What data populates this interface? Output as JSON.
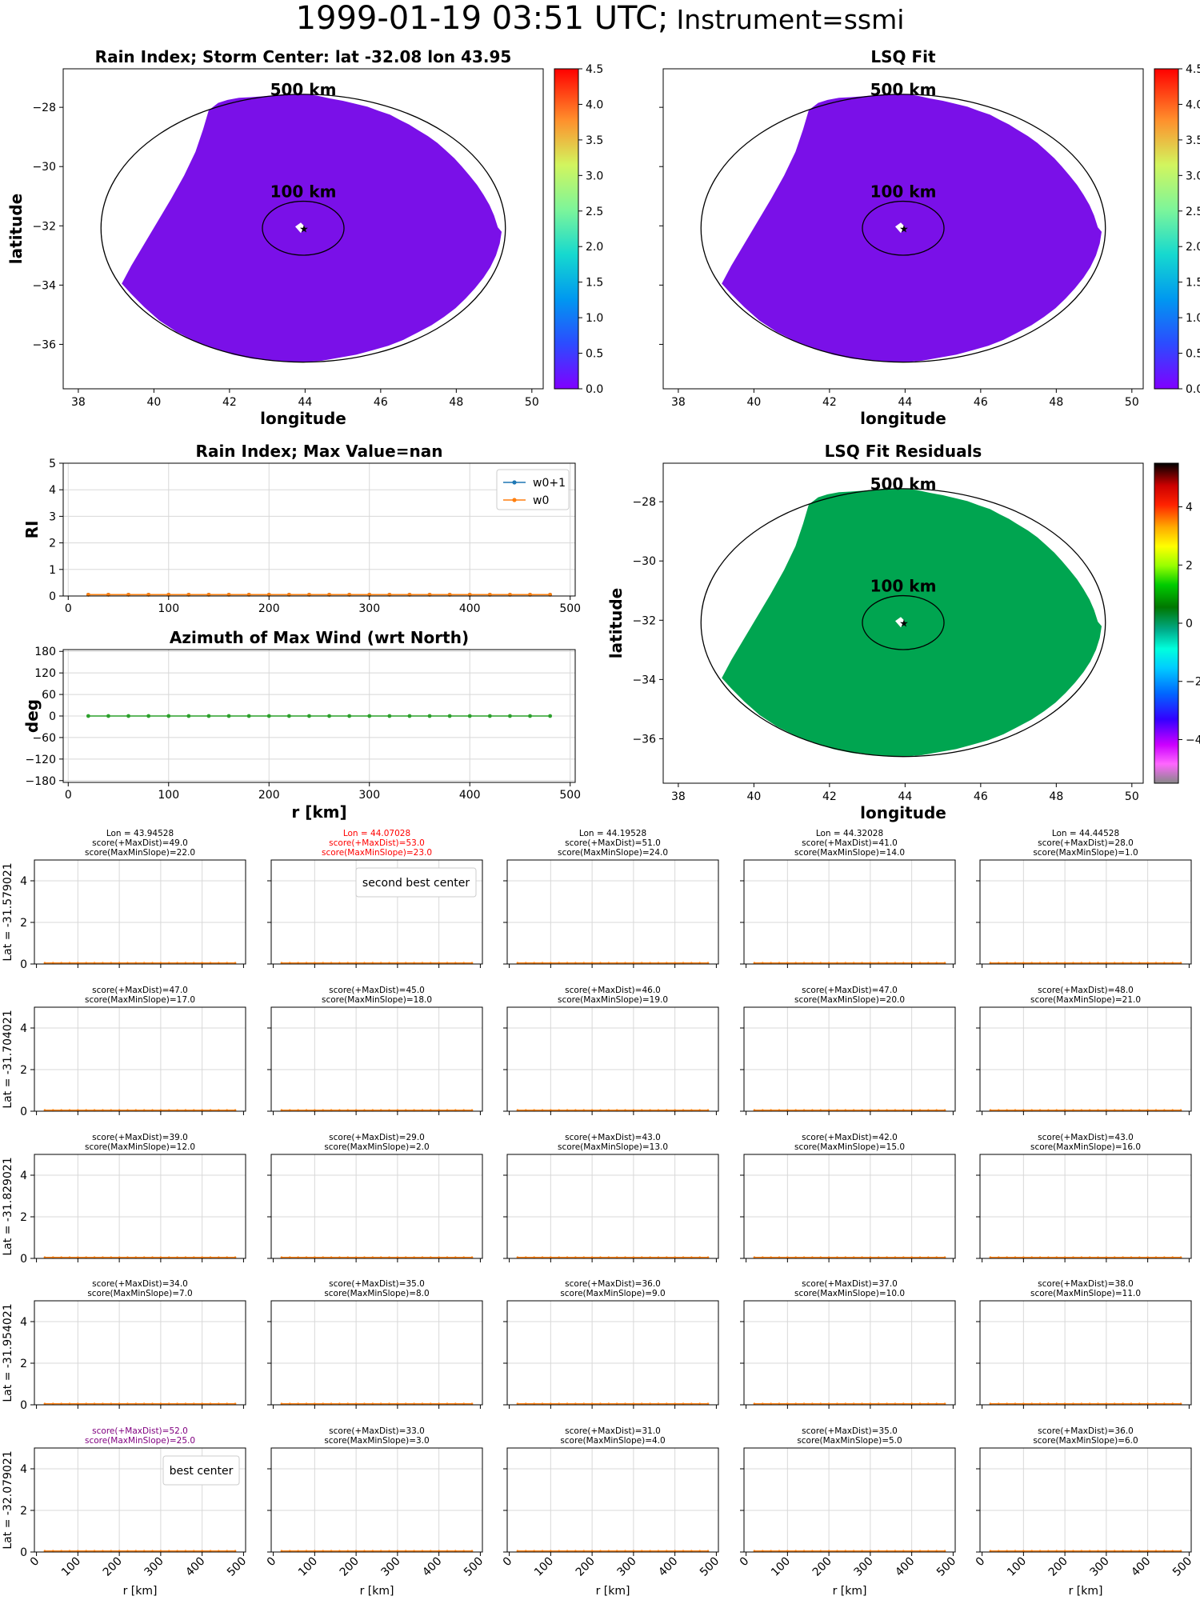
{
  "figure": {
    "title": "1999-01-19 03:51 UTC;",
    "subtitle": "Instrument=ssmi"
  },
  "colors": {
    "storm_fill": "#7a10e8",
    "residual_fill": "#00a550",
    "blue_line": "#1f77b4",
    "orange_line": "#ff7f0e",
    "green_line": "#2ca02c",
    "highlight_red": "#ff0000",
    "highlight_purple": "#800080",
    "grid": "#d8d8d8"
  },
  "chart_data": [
    {
      "id": "rain-index-map",
      "type": "heatmap",
      "title": "Rain Index; Storm Center: lat -32.08 lon 43.95",
      "xlabel": "longitude",
      "ylabel": "latitude",
      "xlim": [
        37.6,
        50.3
      ],
      "ylim": [
        -37.5,
        -26.7
      ],
      "xticks": [
        38,
        40,
        42,
        44,
        46,
        48,
        50
      ],
      "yticks": [
        -28,
        -30,
        -32,
        -34,
        -36
      ],
      "center": [
        43.95,
        -32.08
      ],
      "ring_labels": [
        "500 km",
        "100 km"
      ],
      "colorbar": {
        "range": [
          0.0,
          4.5
        ],
        "ticks": [
          "0.0",
          "0.5",
          "1.0",
          "1.5",
          "2.0",
          "2.5",
          "3.0",
          "3.5",
          "4.0",
          "4.5"
        ],
        "cmap": "rainbow"
      },
      "field_value": 0.0
    },
    {
      "id": "lsq-fit-map",
      "type": "heatmap",
      "title": "LSQ Fit",
      "xlabel": "longitude",
      "ylabel": "",
      "xlim": [
        37.6,
        50.3
      ],
      "ylim": [
        -37.5,
        -26.7
      ],
      "xticks": [
        38,
        40,
        42,
        44,
        46,
        48,
        50
      ],
      "yticks": [
        -28,
        -30,
        -32,
        -34,
        -36
      ],
      "center": [
        43.95,
        -32.08
      ],
      "ring_labels": [
        "500 km",
        "100 km"
      ],
      "colorbar": {
        "range": [
          0.0,
          4.5
        ],
        "ticks": [
          "0.0",
          "0.5",
          "1.0",
          "1.5",
          "2.0",
          "2.5",
          "3.0",
          "3.5",
          "4.0",
          "4.5"
        ],
        "cmap": "rainbow"
      },
      "field_value": 0.0
    },
    {
      "id": "lsq-residuals-map",
      "type": "heatmap",
      "title": "LSQ Fit Residuals",
      "xlabel": "longitude",
      "ylabel": "latitude",
      "xlim": [
        37.6,
        50.3
      ],
      "ylim": [
        -37.5,
        -26.7
      ],
      "xticks": [
        38,
        40,
        42,
        44,
        46,
        48,
        50
      ],
      "yticks": [
        -28,
        -30,
        -32,
        -34,
        -36
      ],
      "center": [
        43.95,
        -32.08
      ],
      "ring_labels": [
        "500 km",
        "100 km"
      ],
      "colorbar": {
        "range": [
          -5.5,
          5.5
        ],
        "ticks": [
          "4",
          "2",
          "0",
          "−2",
          "−4"
        ],
        "tick_values": [
          4,
          2,
          0,
          -2,
          -4
        ],
        "cmap": "nipy_spectral"
      },
      "field_value": 0.0
    },
    {
      "id": "rain-index-profile",
      "type": "line",
      "title": "Rain Index; Max Value=nan",
      "xlabel": "",
      "ylabel": "RI",
      "xlim": [
        -5,
        505
      ],
      "ylim": [
        0,
        5
      ],
      "xticks": [
        0,
        100,
        200,
        300,
        400,
        500
      ],
      "yticks": [
        0,
        1,
        2,
        3,
        4,
        5
      ],
      "x": [
        20,
        40,
        60,
        80,
        100,
        120,
        140,
        160,
        180,
        200,
        220,
        240,
        260,
        280,
        300,
        320,
        340,
        360,
        380,
        400,
        420,
        440,
        460,
        480
      ],
      "series": [
        {
          "name": "w0+1",
          "marker": "star",
          "values": [
            0.05,
            0.05,
            0.05,
            0.05,
            0.05,
            0.05,
            0.05,
            0.05,
            0.05,
            0.05,
            0.05,
            0.05,
            0.05,
            0.05,
            0.05,
            0.05,
            0.05,
            0.05,
            0.05,
            0.05,
            0.05,
            0.05,
            0.05,
            0.05
          ]
        },
        {
          "name": "w0",
          "marker": "dot",
          "values": [
            0.05,
            0.05,
            0.05,
            0.05,
            0.05,
            0.05,
            0.05,
            0.05,
            0.05,
            0.05,
            0.05,
            0.05,
            0.05,
            0.05,
            0.05,
            0.05,
            0.05,
            0.05,
            0.05,
            0.05,
            0.05,
            0.05,
            0.05,
            0.05
          ]
        }
      ],
      "legend": "top-right"
    },
    {
      "id": "azimuth-profile",
      "type": "line",
      "title": "Azimuth of Max Wind (wrt North)",
      "xlabel": "r [km]",
      "ylabel": "deg",
      "xlim": [
        -5,
        505
      ],
      "ylim": [
        -185,
        185
      ],
      "xticks": [
        0,
        100,
        200,
        300,
        400,
        500
      ],
      "yticks": [
        180,
        120,
        60,
        0,
        -60,
        -120,
        -180
      ],
      "ytick_labels": [
        "180",
        "120",
        "60",
        "0",
        "−60",
        "−120",
        "−180"
      ],
      "x": [
        20,
        40,
        60,
        80,
        100,
        120,
        140,
        160,
        180,
        200,
        220,
        240,
        260,
        280,
        300,
        320,
        340,
        360,
        380,
        400,
        420,
        440,
        460,
        480
      ],
      "series": [
        {
          "values": [
            0,
            0,
            0,
            0,
            0,
            0,
            0,
            0,
            0,
            0,
            0,
            0,
            0,
            0,
            0,
            0,
            0,
            0,
            0,
            0,
            0,
            0,
            0,
            0
          ]
        }
      ]
    },
    {
      "id": "center-search-grid",
      "type": "line",
      "xlabel": "r [km]",
      "xlim": [
        -5,
        505
      ],
      "ylim": [
        0,
        5
      ],
      "xticks": [
        0,
        100,
        200,
        300,
        400,
        500
      ],
      "yticks": [
        0,
        2,
        4
      ],
      "lons": [
        "Lon = 43.94528",
        "Lon = 44.07028",
        "Lon = 44.19528",
        "Lon = 44.32028",
        "Lon = 44.44528"
      ],
      "lats": [
        "Lat = -31.579021",
        "Lat = -31.704021",
        "Lat = -31.829021",
        "Lat = -31.954021",
        "Lat = -32.079021"
      ],
      "cells": [
        [
          {
            "maxdist": "score(+MaxDist)=49.0",
            "slope": "score(MaxMinSlope)=22.0"
          },
          {
            "maxdist": "score(+MaxDist)=53.0",
            "slope": "score(MaxMinSlope)=23.0",
            "highlight": "red",
            "legend": "second best center"
          },
          {
            "maxdist": "score(+MaxDist)=51.0",
            "slope": "score(MaxMinSlope)=24.0"
          },
          {
            "maxdist": "score(+MaxDist)=41.0",
            "slope": "score(MaxMinSlope)=14.0"
          },
          {
            "maxdist": "score(+MaxDist)=28.0",
            "slope": "score(MaxMinSlope)=1.0"
          }
        ],
        [
          {
            "maxdist": "score(+MaxDist)=47.0",
            "slope": "score(MaxMinSlope)=17.0"
          },
          {
            "maxdist": "score(+MaxDist)=45.0",
            "slope": "score(MaxMinSlope)=18.0"
          },
          {
            "maxdist": "score(+MaxDist)=46.0",
            "slope": "score(MaxMinSlope)=19.0"
          },
          {
            "maxdist": "score(+MaxDist)=47.0",
            "slope": "score(MaxMinSlope)=20.0"
          },
          {
            "maxdist": "score(+MaxDist)=48.0",
            "slope": "score(MaxMinSlope)=21.0"
          }
        ],
        [
          {
            "maxdist": "score(+MaxDist)=39.0",
            "slope": "score(MaxMinSlope)=12.0"
          },
          {
            "maxdist": "score(+MaxDist)=29.0",
            "slope": "score(MaxMinSlope)=2.0"
          },
          {
            "maxdist": "score(+MaxDist)=43.0",
            "slope": "score(MaxMinSlope)=13.0"
          },
          {
            "maxdist": "score(+MaxDist)=42.0",
            "slope": "score(MaxMinSlope)=15.0"
          },
          {
            "maxdist": "score(+MaxDist)=43.0",
            "slope": "score(MaxMinSlope)=16.0"
          }
        ],
        [
          {
            "maxdist": "score(+MaxDist)=34.0",
            "slope": "score(MaxMinSlope)=7.0"
          },
          {
            "maxdist": "score(+MaxDist)=35.0",
            "slope": "score(MaxMinSlope)=8.0"
          },
          {
            "maxdist": "score(+MaxDist)=36.0",
            "slope": "score(MaxMinSlope)=9.0"
          },
          {
            "maxdist": "score(+MaxDist)=37.0",
            "slope": "score(MaxMinSlope)=10.0"
          },
          {
            "maxdist": "score(+MaxDist)=38.0",
            "slope": "score(MaxMinSlope)=11.0"
          }
        ],
        [
          {
            "maxdist": "score(+MaxDist)=52.0",
            "slope": "score(MaxMinSlope)=25.0",
            "highlight": "purple",
            "legend": "best center"
          },
          {
            "maxdist": "score(+MaxDist)=33.0",
            "slope": "score(MaxMinSlope)=3.0"
          },
          {
            "maxdist": "score(+MaxDist)=31.0",
            "slope": "score(MaxMinSlope)=4.0"
          },
          {
            "maxdist": "score(+MaxDist)=35.0",
            "slope": "score(MaxMinSlope)=5.0"
          },
          {
            "maxdist": "score(+MaxDist)=36.0",
            "slope": "score(MaxMinSlope)=6.0"
          }
        ]
      ],
      "series_values": 0.05
    }
  ]
}
